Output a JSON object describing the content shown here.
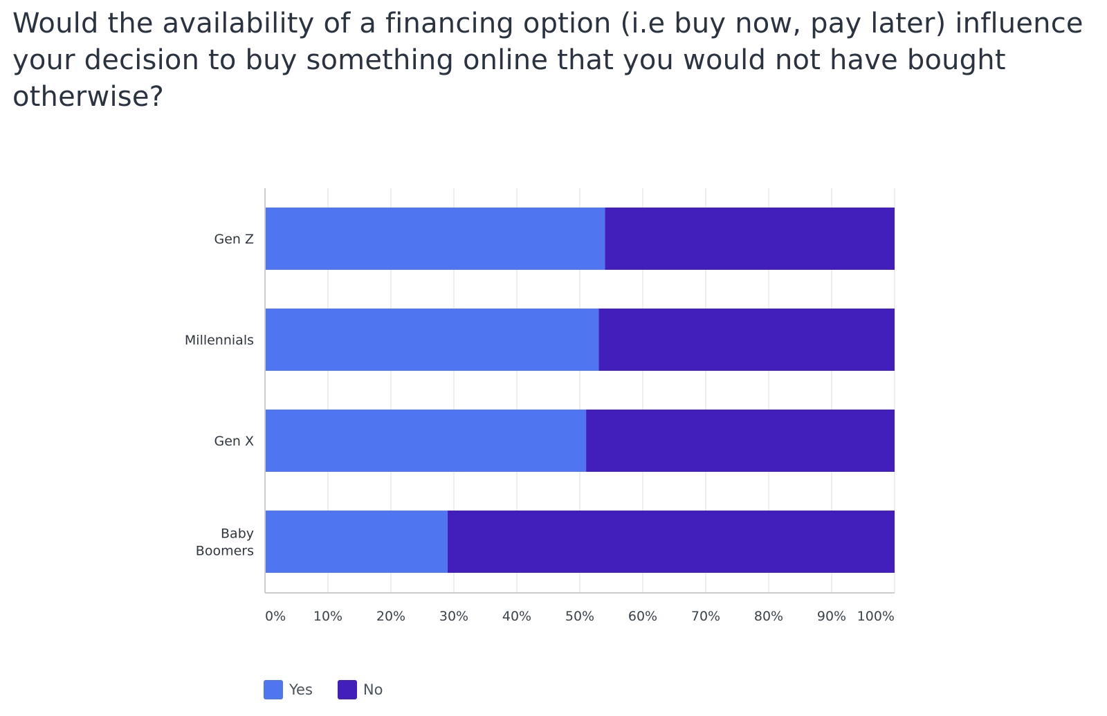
{
  "question": "Would the availability of a financing option (i.e buy now, pay later) influence your decision to buy something online that you would not have bought otherwise?",
  "colors": {
    "yes": "#4f76f0",
    "no": "#421fbb",
    "grid": "#e8e8e8",
    "axis": "#cccccc",
    "text": "#2f3640"
  },
  "legend": {
    "items": [
      {
        "label": "Yes",
        "color": "#4f76f0"
      },
      {
        "label": "No",
        "color": "#421fbb"
      }
    ],
    "placement": "bottom-left"
  },
  "chart_data": {
    "type": "bar",
    "orientation": "horizontal",
    "stacked": true,
    "title": "Would the availability of a financing option (i.e buy now, pay later) influence your decision to buy something online that you would not have bought otherwise?",
    "categories": [
      "Gen Z",
      "Millennials",
      "Gen X",
      "Baby Boomers"
    ],
    "category_lines": [
      [
        "Gen Z"
      ],
      [
        "Millennials"
      ],
      [
        "Gen X"
      ],
      [
        "Baby",
        "Boomers"
      ]
    ],
    "series": [
      {
        "name": "Yes",
        "values": [
          54,
          53,
          51,
          29
        ]
      },
      {
        "name": "No",
        "values": [
          46,
          47,
          49,
          71
        ]
      }
    ],
    "xlim": [
      0,
      100
    ],
    "xticks": [
      "0%",
      "10%",
      "20%",
      "30%",
      "40%",
      "50%",
      "60%",
      "70%",
      "80%",
      "90%",
      "100%"
    ],
    "grid": true,
    "legend_position": "bottom-left"
  }
}
